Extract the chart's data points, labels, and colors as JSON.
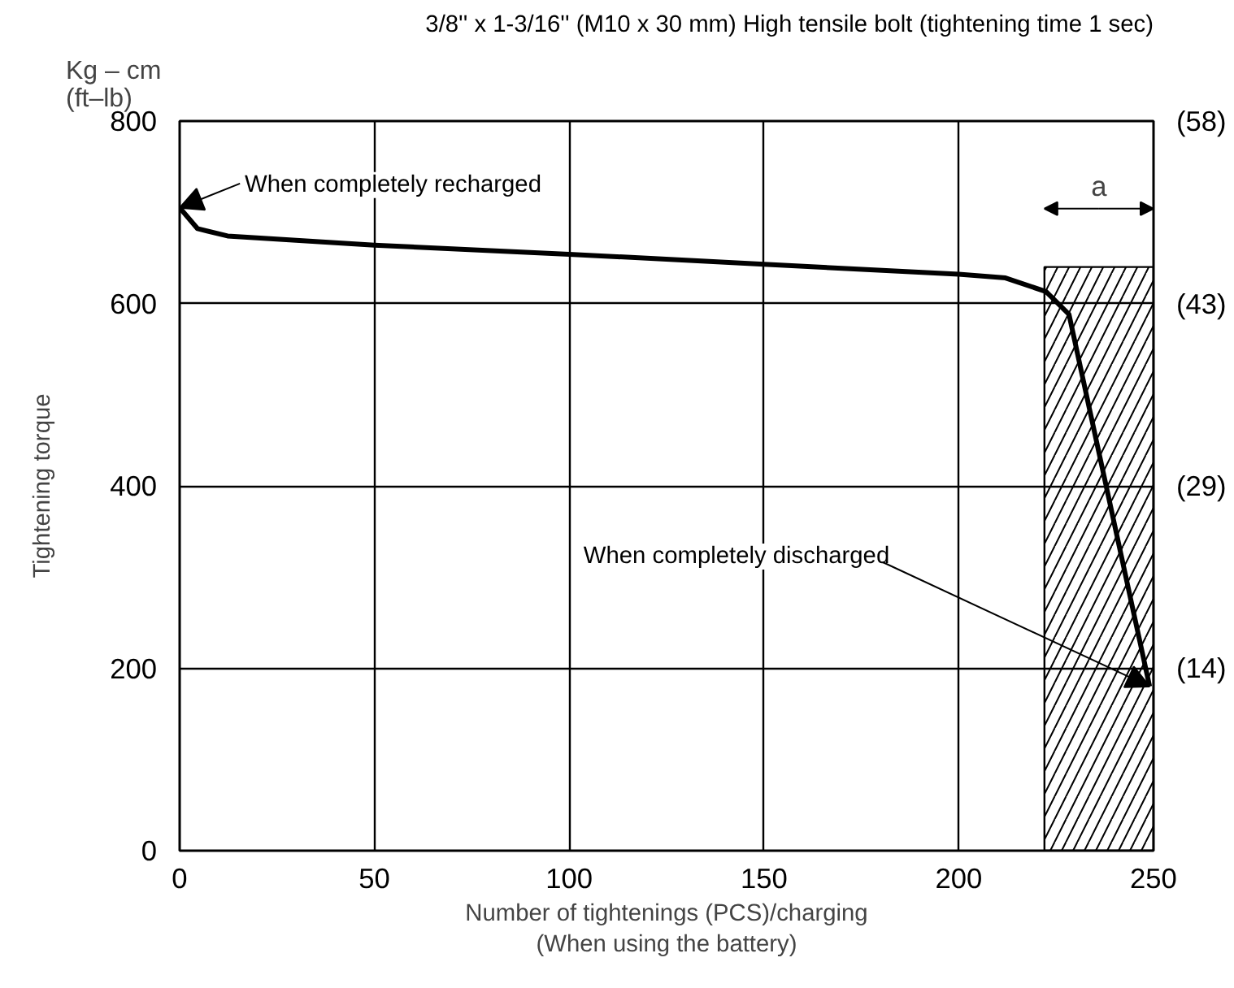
{
  "chart_data": {
    "type": "line",
    "title": "3/8'' x 1-3/16'' (M10 x 30 mm) High tensile bolt (tightening time 1 sec)",
    "xlabel": "Number of tightenings (PCS)/charging\n(When using the battery)",
    "ylabel": "Tightening torque",
    "annotations": [
      "Kg – cm\n(ft–lb)",
      {
        "text": "When completely recharged",
        "x": 0,
        "y": 705
      },
      {
        "text": "When completely discharged",
        "x": 249,
        "y": 180
      }
    ],
    "series": [
      {
        "color": "#000000",
        "x": [
          0,
          4.6,
          12.3,
          50,
          100,
          150,
          200,
          212,
          222.4,
          228.3,
          249
        ],
        "values": [
          705,
          682,
          674,
          664,
          654,
          643,
          632,
          628,
          613,
          588,
          180
        ]
      }
    ],
    "xlim": [
      0,
      250
    ],
    "ylim": [
      0,
      800
    ],
    "xticks": [
      0,
      50,
      100,
      150,
      200,
      250
    ],
    "yticks": [
      0,
      200,
      400,
      600,
      800
    ],
    "y2lim": [
      0,
      57.87
    ],
    "y2ticks": [
      {
        "value": 14.47,
        "label": "(14)"
      },
      {
        "value": 28.93,
        "label": "(29)"
      },
      {
        "value": 43.4,
        "label": "(43)"
      },
      {
        "value": 57.87,
        "label": "(58)"
      }
    ],
    "bands": [
      {
        "axis": "x",
        "from": 222,
        "to": 250,
        "label": "a",
        "color": "#000000"
      }
    ],
    "grid": true,
    "marker": "none",
    "line_style": "solid"
  }
}
